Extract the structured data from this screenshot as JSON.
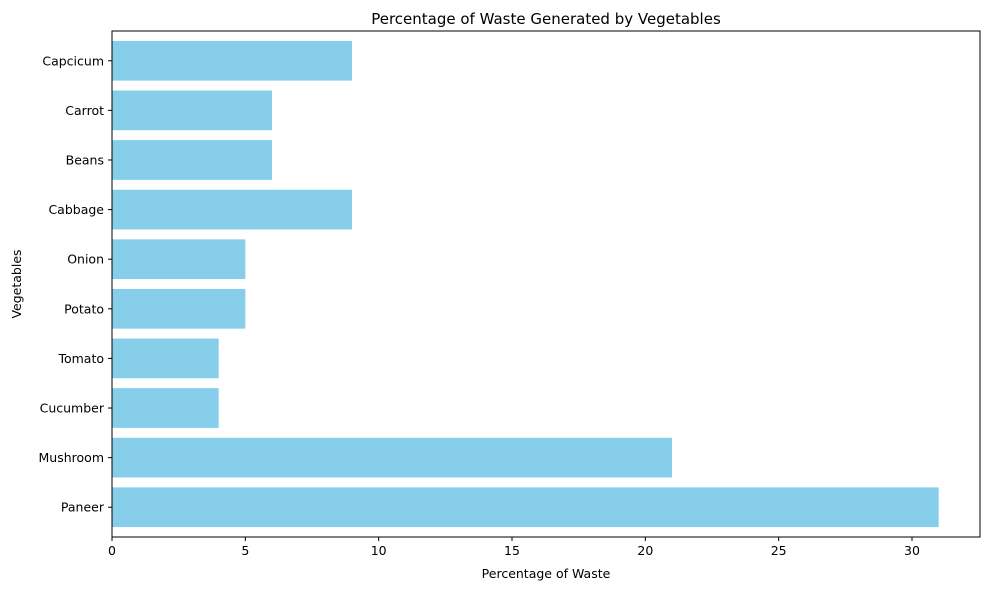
{
  "chart_data": {
    "type": "bar",
    "orientation": "horizontal",
    "title": "Percentage of Waste Generated by Vegetables",
    "xlabel": "Percentage of Waste",
    "ylabel": "Vegetables",
    "categories": [
      "Paneer",
      "Mushroom",
      "Cucumber",
      "Tomato",
      "Potato",
      "Onion",
      "Cabbage",
      "Beans",
      "Carrot",
      "Capcicum"
    ],
    "values": [
      31,
      21,
      4,
      4,
      5,
      5,
      9,
      6,
      6,
      9
    ],
    "xlim": [
      0,
      32.55
    ],
    "xticks": [
      0,
      5,
      10,
      15,
      20,
      25,
      30
    ],
    "xtick_labels": [
      "0",
      "5",
      "10",
      "15",
      "20",
      "25",
      "30"
    ],
    "bar_color": "#87ceeb",
    "grid": false,
    "legend": "none"
  }
}
